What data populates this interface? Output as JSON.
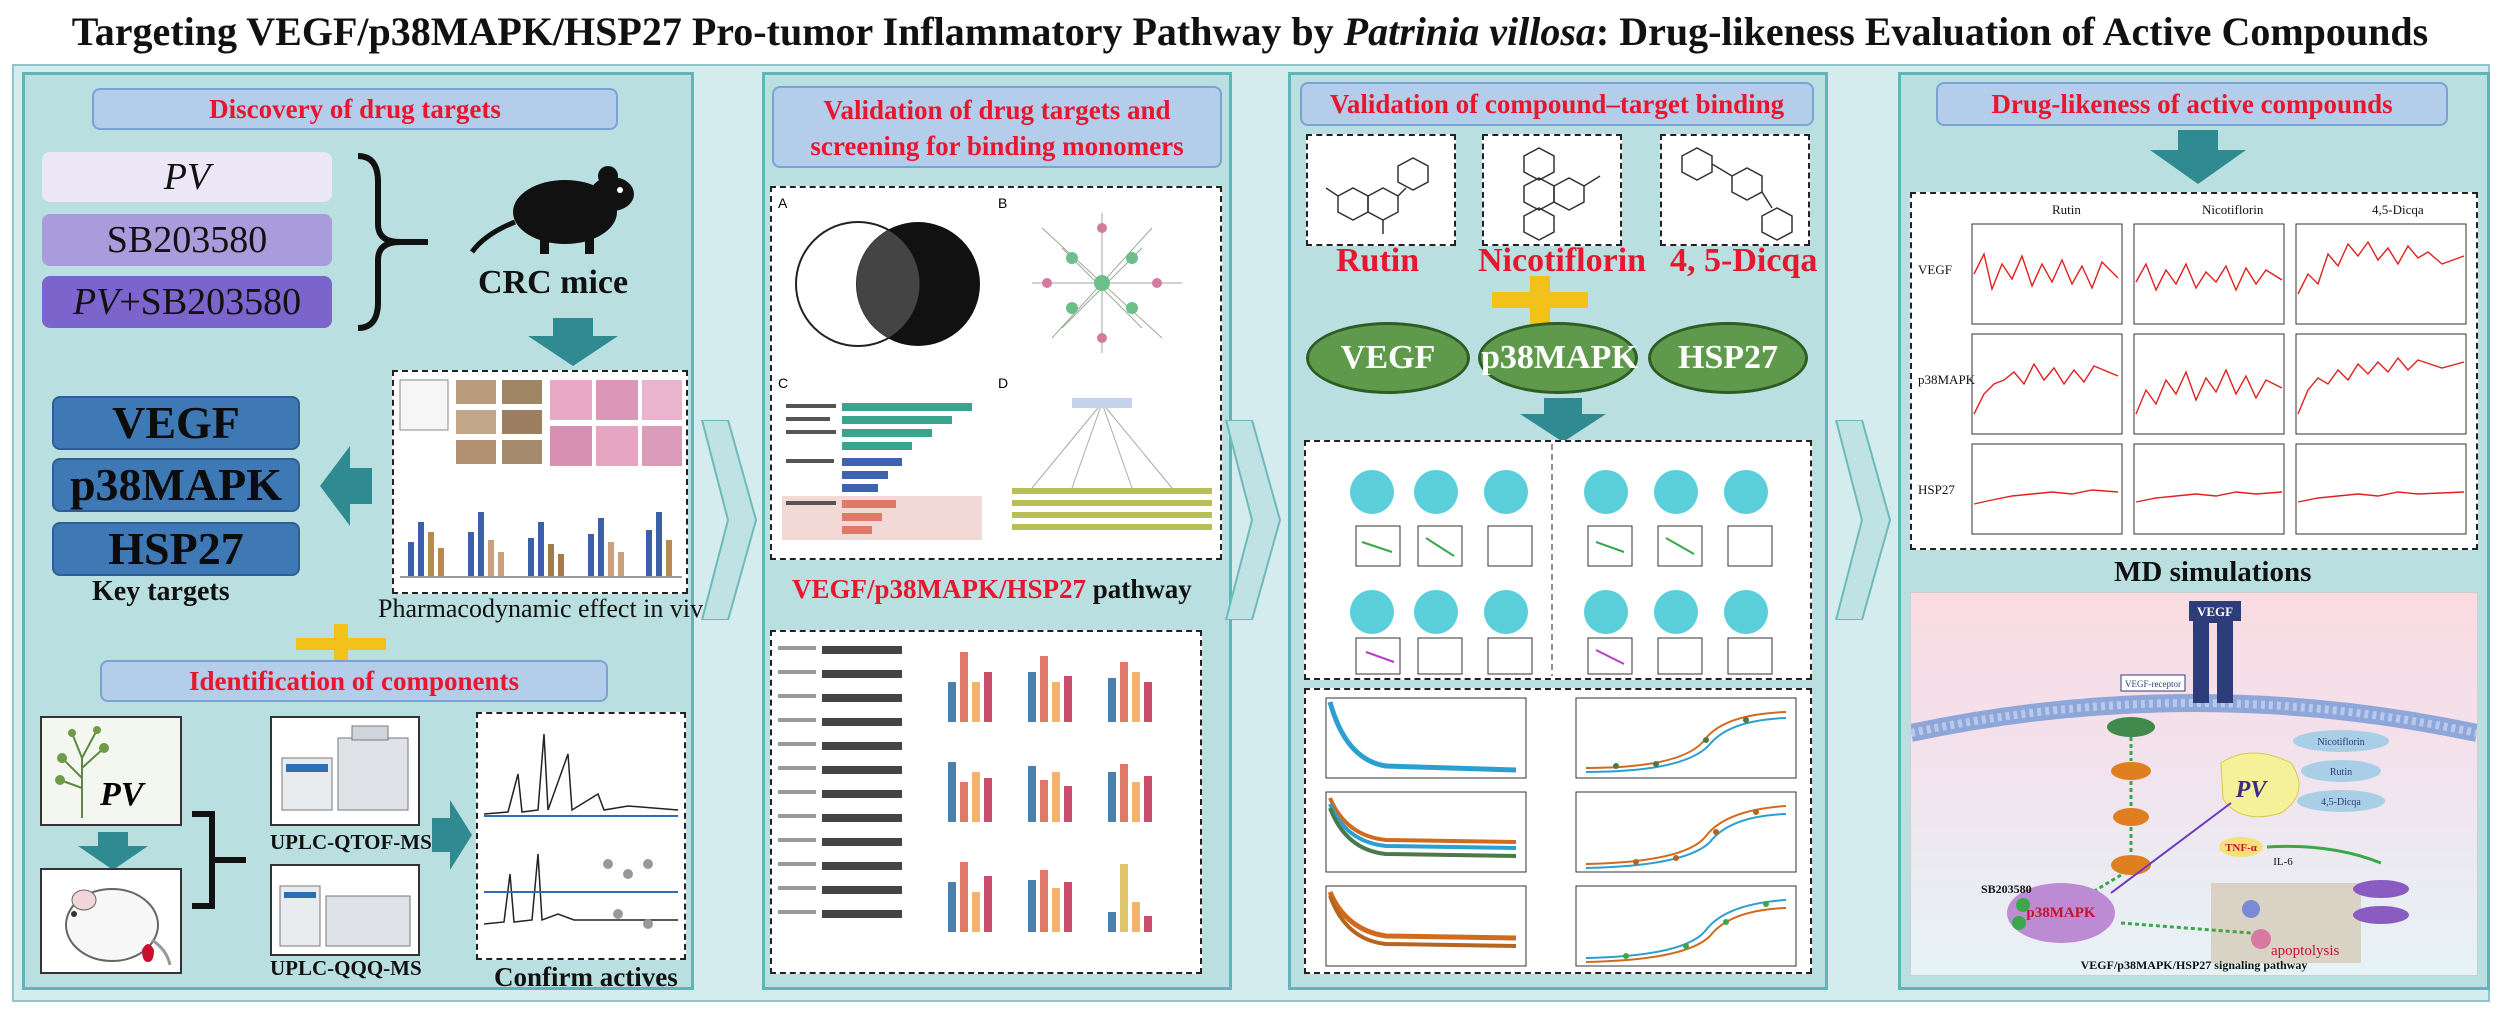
{
  "title": {
    "part1": "Targeting VEGF/p38MAPK/HSP27 Pro-tumor Inflammatory Pathway by ",
    "italic": "Patrinia villosa",
    "part2": ": Drug-likeness Evaluation of Active Compounds"
  },
  "panel1": {
    "discovery_label": "Discovery of drug targets",
    "groups": [
      "PV",
      "SB203580",
      "+SB203580"
    ],
    "group3_italic": "PV",
    "mice_label": "CRC mice",
    "targets": [
      "VEGF",
      "p38MAPK",
      "HSP27"
    ],
    "key_targets_label": "Key targets",
    "pharm_label": "Pharmacodynamic effect in vivo",
    "identification_label": "Identification of components",
    "pv_label": "PV",
    "instruments": [
      "UPLC-QTOF-MS",
      "UPLC-QQQ-MS"
    ],
    "confirm_label": "Confirm actives"
  },
  "panel2": {
    "title_line1": "Validation of drug targets and",
    "title_line2": "screening for binding monomers",
    "pathway_red": "VEGF/p38MAPK/HSP27",
    "pathway_black": " pathway",
    "subpanel_letters": [
      "A",
      "B",
      "C",
      "D"
    ]
  },
  "panel3": {
    "title": "Validation of compound–target binding",
    "compounds": [
      "Rutin",
      "Nicotiflorin",
      "4, 5-Dicqa"
    ],
    "proteins": [
      "VEGF",
      "p38MAPK",
      "HSP27"
    ]
  },
  "panel4": {
    "title": "Drug-likeness of active compounds",
    "md_col_headers": [
      "Rutin",
      "Nicotiflorin",
      "4,5-Dicqa"
    ],
    "md_row_labels": [
      "VEGF",
      "p38MAPK",
      "HSP27"
    ],
    "md_label": "MD simulations",
    "pathway": {
      "vegf": "VEGF",
      "receptor": "VEGF-receptor",
      "sb": "SB203580",
      "p38": "p38MAPK",
      "pv": "PV",
      "compounds": [
        "Nicotiflorin",
        "Rutin",
        "4,5-Dicqa"
      ],
      "tnf": "TNF-α",
      "il6": "IL-6",
      "apoptosis": "apoptolysis",
      "caption": "VEGF/p38MAPK/HSP27 signaling pathway"
    }
  }
}
